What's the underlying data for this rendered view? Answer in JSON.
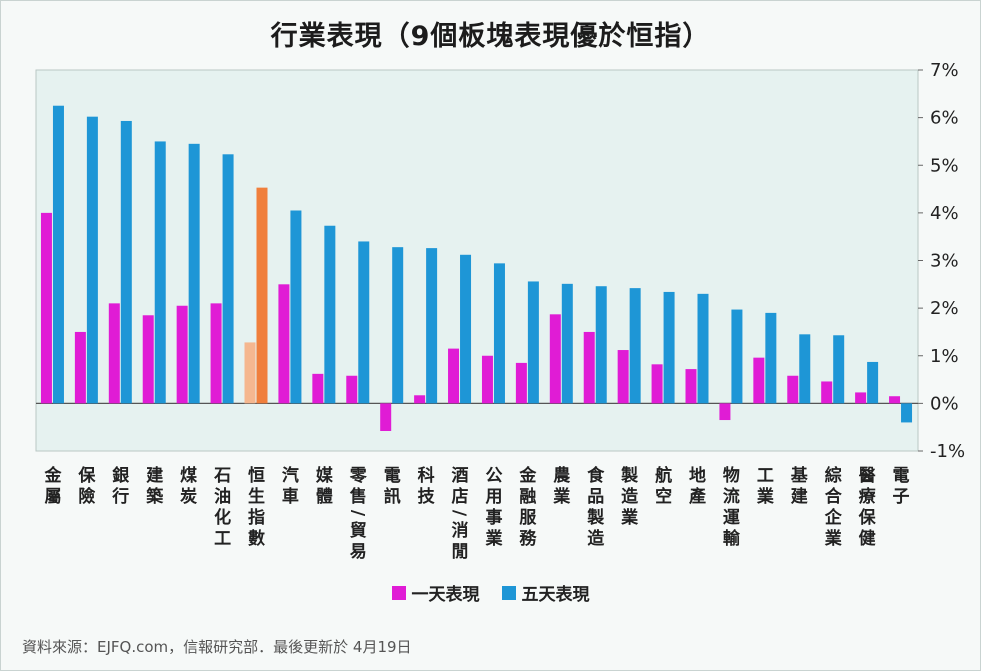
{
  "title": "行業表現（9個板塊表現優於恒指）",
  "source": "資料來源：EJFQ.com，信報研究部．最後更新於 4月19日",
  "colors": {
    "one_day": "#e01cd5",
    "five_day": "#1e96d6",
    "index_one_day": "#f5b78f",
    "index_five_day": "#f07f3c",
    "plot_bg": "#e6f2f0"
  },
  "legend": [
    {
      "name": "一天表現",
      "color": "#e01cd5"
    },
    {
      "name": "五天表現",
      "color": "#1e96d6"
    }
  ],
  "chart_data": {
    "type": "bar",
    "title": "行業表現（9個板塊表現優於恒指）",
    "ylim": [
      -1,
      7
    ],
    "yticks": [
      7,
      6,
      5,
      4,
      3,
      2,
      1,
      0,
      -1
    ],
    "ytick_labels": [
      "7%",
      "6%",
      "5%",
      "4%",
      "3%",
      "2%",
      "1%",
      "0%",
      "-1%"
    ],
    "legend_position": "bottom",
    "categories": [
      "金屬",
      "保險",
      "銀行",
      "建築",
      "煤炭",
      "石油化工",
      "恒生指數",
      "汽車",
      "媒體",
      "零售/貿易",
      "電訊",
      "科技",
      "酒店/消閒",
      "公用事業",
      "金融服務",
      "農業",
      "食品製造",
      "製造業",
      "航空",
      "地產",
      "物流運輸",
      "工業",
      "基建",
      "綜合企業",
      "醫療保健",
      "電子"
    ],
    "highlight_category": "恒生指數",
    "series": [
      {
        "name": "一天表現",
        "values": [
          4.0,
          1.5,
          2.1,
          1.85,
          2.05,
          2.1,
          1.28,
          2.5,
          0.62,
          0.58,
          -0.58,
          0.17,
          1.15,
          1.0,
          0.85,
          1.87,
          1.5,
          1.12,
          0.82,
          0.72,
          -0.35,
          0.96,
          0.58,
          0.46,
          0.23,
          0.15
        ]
      },
      {
        "name": "五天表現",
        "values": [
          6.25,
          6.02,
          5.93,
          5.5,
          5.45,
          5.23,
          4.53,
          4.05,
          3.73,
          3.4,
          3.28,
          3.26,
          3.12,
          2.94,
          2.56,
          2.51,
          2.46,
          2.42,
          2.34,
          2.3,
          1.97,
          1.9,
          1.45,
          1.43,
          0.87,
          -0.4
        ]
      }
    ]
  }
}
